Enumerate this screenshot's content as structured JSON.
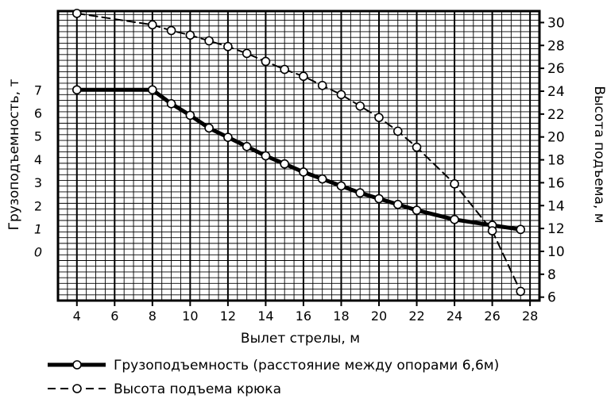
{
  "chart_data": {
    "type": "line",
    "xlabel": "Вылет стрелы, м",
    "ylabel_left": "Грузоподъемность, т",
    "ylabel_right": "Высота подъема, м",
    "x_ticks": [
      "4",
      "6",
      "8",
      "10",
      "12",
      "14",
      "16",
      "18",
      "20",
      "22",
      "24",
      "26",
      "28"
    ],
    "y_left_ticks": [
      "0",
      "1",
      "2",
      "3",
      "4",
      "5",
      "6",
      "7"
    ],
    "y_right_ticks": [
      "6",
      "8",
      "10",
      "12",
      "14",
      "16",
      "18",
      "20",
      "22",
      "24",
      "26",
      "28",
      "30"
    ],
    "xlim": [
      3,
      28.5
    ],
    "ylim_left": [
      -2.1,
      10.4
    ],
    "ylim_right": [
      5.7,
      31
    ],
    "grid": true,
    "legend_position": "bottom-left",
    "series": [
      {
        "name": "Грузоподъемность (расстояние между опорами 6,6м)",
        "axis": "left",
        "style": "solid",
        "x": [
          4,
          8,
          9,
          10,
          11,
          12,
          13,
          14,
          15,
          16,
          17,
          18,
          19,
          20,
          21,
          22,
          24,
          26,
          27.5
        ],
        "y": [
          7.0,
          7.0,
          6.4,
          5.9,
          5.35,
          4.95,
          4.55,
          4.15,
          3.8,
          3.45,
          3.15,
          2.85,
          2.55,
          2.3,
          2.05,
          1.8,
          1.4,
          1.15,
          0.97
        ]
      },
      {
        "name": "Высота подъема крюка",
        "axis": "right",
        "style": "dashed",
        "x": [
          4,
          8,
          9,
          10,
          11,
          12,
          13,
          14,
          15,
          16,
          17,
          18,
          19,
          20,
          21,
          22,
          24,
          26,
          27.5
        ],
        "y": [
          30.8,
          29.8,
          29.3,
          28.9,
          28.4,
          27.9,
          27.3,
          26.6,
          25.9,
          25.3,
          24.5,
          23.7,
          22.7,
          21.7,
          20.5,
          19.1,
          15.9,
          11.8,
          6.5
        ]
      }
    ]
  }
}
